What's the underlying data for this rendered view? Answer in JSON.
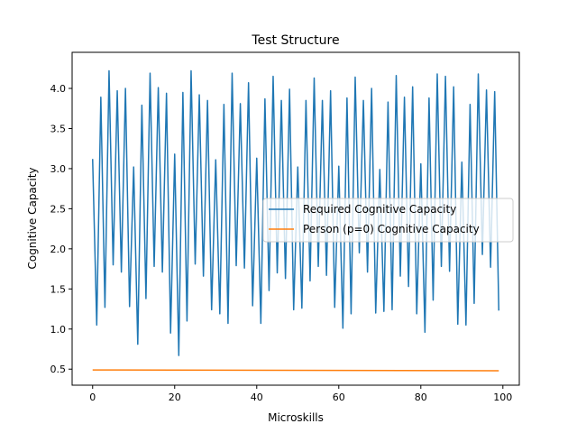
{
  "chart_data": {
    "type": "line",
    "title": "Test Structure",
    "xlabel": "Microskills",
    "ylabel": "Cognitive Capacity",
    "xlim": [
      -5,
      104
    ],
    "ylim": [
      0.3,
      4.45
    ],
    "xticks": [
      0,
      20,
      40,
      60,
      80,
      100
    ],
    "yticks": [
      0.5,
      1.0,
      1.5,
      2.0,
      2.5,
      3.0,
      3.5,
      4.0
    ],
    "ytick_labels": [
      "0.5",
      "1.0",
      "1.5",
      "2.0",
      "2.5",
      "3.0",
      "3.5",
      "4.0"
    ],
    "grid": false,
    "legend_position": "center-right",
    "series": [
      {
        "name": "Required Cognitive Capacity",
        "color": "#1f77b4",
        "x": [
          0,
          1,
          2,
          3,
          4,
          5,
          6,
          7,
          8,
          9,
          10,
          11,
          12,
          13,
          14,
          15,
          16,
          17,
          18,
          19,
          20,
          21,
          22,
          23,
          24,
          25,
          26,
          27,
          28,
          29,
          30,
          31,
          32,
          33,
          34,
          35,
          36,
          37,
          38,
          39,
          40,
          41,
          42,
          43,
          44,
          45,
          46,
          47,
          48,
          49,
          50,
          51,
          52,
          53,
          54,
          55,
          56,
          57,
          58,
          59,
          60,
          61,
          62,
          63,
          64,
          65,
          66,
          67,
          68,
          69,
          70,
          71,
          72,
          73,
          74,
          75,
          76,
          77,
          78,
          79,
          80,
          81,
          82,
          83,
          84,
          85,
          86,
          87,
          88,
          89,
          90,
          91,
          92,
          93,
          94,
          95,
          96,
          97,
          98,
          99
        ],
        "values": [
          3.12,
          1.05,
          3.89,
          1.27,
          4.22,
          1.8,
          3.97,
          1.71,
          4.0,
          1.28,
          3.02,
          0.81,
          3.79,
          1.38,
          4.19,
          1.78,
          4.01,
          1.71,
          3.94,
          0.95,
          3.18,
          0.67,
          3.95,
          1.1,
          4.22,
          1.81,
          3.92,
          1.66,
          3.85,
          1.24,
          3.11,
          1.19,
          3.8,
          1.07,
          4.19,
          1.79,
          3.81,
          1.76,
          4.07,
          1.29,
          3.13,
          1.07,
          3.87,
          1.48,
          4.15,
          1.7,
          3.85,
          1.63,
          3.99,
          1.24,
          3.02,
          1.26,
          3.85,
          1.6,
          4.13,
          1.78,
          3.85,
          1.67,
          3.97,
          1.27,
          3.03,
          1.01,
          3.88,
          1.19,
          4.14,
          1.95,
          3.85,
          1.71,
          4.0,
          1.2,
          2.99,
          1.22,
          3.83,
          1.24,
          4.16,
          1.66,
          3.89,
          1.53,
          4.02,
          1.19,
          3.06,
          0.96,
          3.88,
          1.36,
          4.18,
          1.78,
          4.15,
          1.72,
          4.02,
          1.06,
          3.08,
          1.05,
          3.8,
          1.32,
          4.18,
          1.93,
          3.98,
          1.77,
          3.96,
          1.23
        ]
      },
      {
        "name": "Person (p=0) Cognitive Capacity",
        "color": "#ff7f0e",
        "x": [
          0,
          99
        ],
        "values": [
          0.49,
          0.48
        ]
      }
    ]
  }
}
